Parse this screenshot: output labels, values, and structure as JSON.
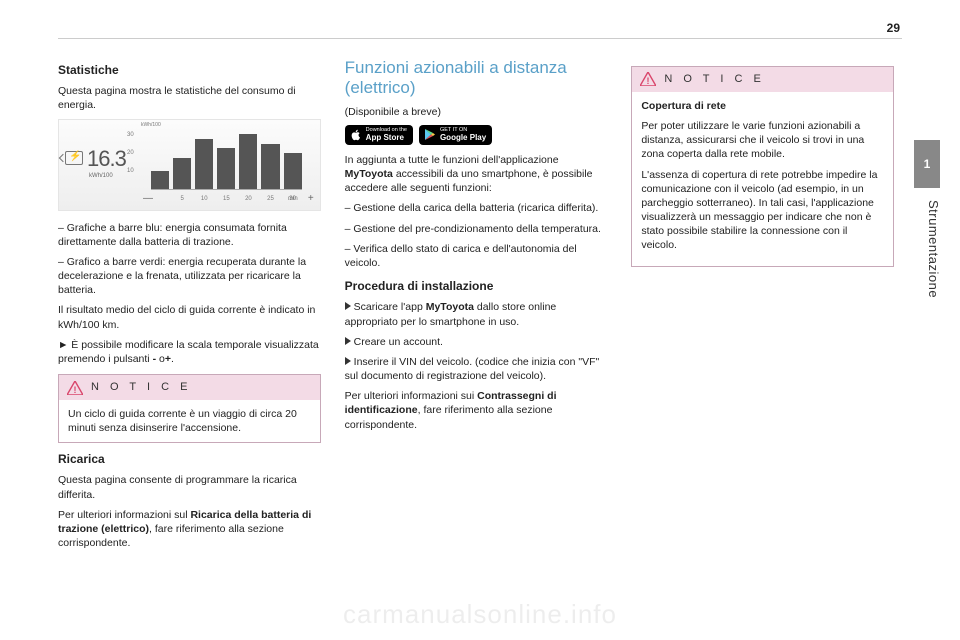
{
  "page_number": "29",
  "side_tab": "1",
  "side_text": "Strumentazione",
  "watermark": "carmanualsonline.info",
  "col1": {
    "h_stat": "Statistiche",
    "p_stat": "Questa pagina mostra le statistiche del consumo di energia.",
    "chart": {
      "value": "16.3",
      "unit": "kWh/100",
      "ylabel": "kWh/100",
      "yticks": [
        "30",
        "20",
        "10",
        "0"
      ],
      "bars": [
        28,
        48,
        78,
        64,
        86,
        70,
        56
      ],
      "bar_color": "#555555",
      "xlabels": [
        "",
        "5",
        "10",
        "15",
        "20",
        "25",
        "30"
      ],
      "xunit": "min",
      "bg_top": "#fcfcfc",
      "bg_bot": "#eeeeee"
    },
    "bullet1": "–  Grafiche a barre blu: energia consumata fornita direttamente dalla batteria di trazione.",
    "bullet2": "–  Grafico a barre verdi: energia recuperata durante la decelerazione e la frenata, utilizzata per ricaricare la batteria.",
    "p_result": "Il risultato medio del ciclo di guida corrente è indicato in kWh/100 km.",
    "p_scale_pre": "►  È possibile modificare la scala temporale visualizzata premendo i pulsanti ",
    "p_scale_bold": "-",
    "p_scale_mid": " o",
    "p_scale_bold2": "+",
    "p_scale_end": ".",
    "notice_title": "N O T I C E",
    "notice_body": "Un ciclo di guida corrente è un viaggio di circa 20 minuti senza disinserire l'accensione.",
    "h_ric": "Ricarica",
    "p_ric1": "Questa pagina consente di programmare la ricarica differita.",
    "p_ric2_pre": "Per ulteriori informazioni sul ",
    "p_ric2_bold": "Ricarica della batteria di trazione (elettrico)",
    "p_ric2_post": ", fare riferimento alla sezione corrispondente."
  },
  "col2": {
    "h_big": "Funzioni azionabili a distanza (elettrico)",
    "p_avail": "(Disponibile a breve)",
    "store_apple_top": "Download on the",
    "store_apple_brand": "App Store",
    "store_google_top": "GET IT ON",
    "store_google_brand": "Google Play",
    "p_intro_pre": "In aggiunta a tutte le funzioni dell'applicazione ",
    "p_intro_bold": "MyToyota",
    "p_intro_post": " accessibili da uno smartphone, è possibile accedere alle seguenti funzioni:",
    "b1": "–  Gestione della carica della batteria (ricarica differita).",
    "b2": "–  Gestione del pre-condizionamento della temperatura.",
    "b3": "–  Verifica dello stato di carica e dell'autonomia del veicolo.",
    "h_proc": "Procedura di installazione",
    "s1_pre": "Scaricare l'app ",
    "s1_bold": "MyToyota",
    "s1_post": " dallo store online appropriato per lo smartphone in uso.",
    "s2": "Creare un account.",
    "s3": "Inserire il VIN del veicolo. (codice che inizia con \"VF\" sul documento di registrazione del veicolo).",
    "p_more_pre": "Per ulteriori informazioni sui ",
    "p_more_bold": "Contrassegni di identificazione",
    "p_more_post": ", fare riferimento alla sezione corrispondente."
  },
  "col3": {
    "notice_title": "N O T I C E",
    "n_bold": "Copertura di rete",
    "n_p1": "Per poter utilizzare le varie funzioni azionabili a distanza, assicurarsi che il veicolo si trovi in una zona coperta dalla rete mobile.",
    "n_p2": "L'assenza di copertura di rete potrebbe impedire la comunicazione con il veicolo (ad esempio, in un parcheggio sotterraneo). In tali casi, l'applicazione visualizzerà un messaggio per indicare che non è stato possibile stabilire la connessione con il veicolo."
  },
  "colors": {
    "notice_bg": "#f3dbe6",
    "notice_border": "#c7a8b8",
    "notice_tri": "#d9456b",
    "heading_blue": "#5aa0c8"
  }
}
